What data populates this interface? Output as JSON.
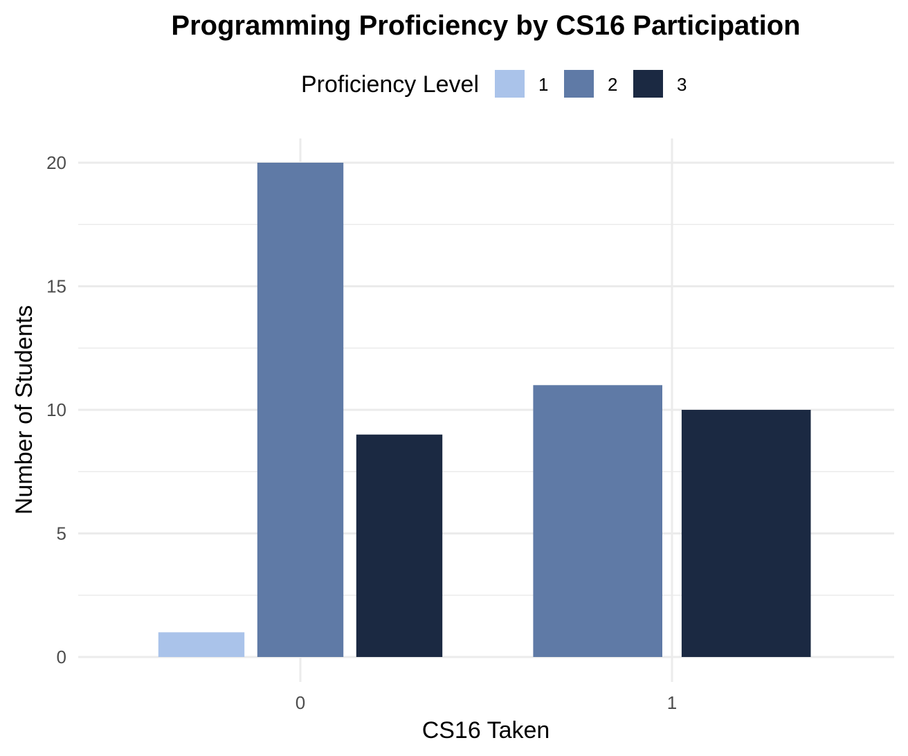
{
  "chart_data": {
    "type": "bar",
    "title": "Programming Proficiency by CS16 Participation",
    "xlabel": "CS16 Taken",
    "ylabel": "Number of Students",
    "categories": [
      "0",
      "1"
    ],
    "legend": {
      "title": "Proficiency Level",
      "placement": "top",
      "entries": [
        {
          "label": "1",
          "color": "#aac3ea"
        },
        {
          "label": "2",
          "color": "#5f7aa6"
        },
        {
          "label": "3",
          "color": "#1b2942"
        }
      ]
    },
    "series": [
      {
        "name": "1",
        "color": "#aac3ea",
        "values": [
          1,
          0
        ]
      },
      {
        "name": "2",
        "color": "#5f7aa6",
        "values": [
          20,
          11
        ]
      },
      {
        "name": "3",
        "color": "#1b2942",
        "values": [
          9,
          10
        ]
      }
    ],
    "yticks": [
      0,
      5,
      10,
      15,
      20
    ],
    "ytick_labels": [
      "0",
      "5",
      "10",
      "15",
      "20"
    ],
    "ylim": [
      0,
      21
    ],
    "grid": true
  }
}
